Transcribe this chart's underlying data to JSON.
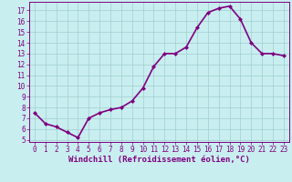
{
  "x": [
    0,
    1,
    2,
    3,
    4,
    5,
    6,
    7,
    8,
    9,
    10,
    11,
    12,
    13,
    14,
    15,
    16,
    17,
    18,
    19,
    20,
    21,
    22,
    23
  ],
  "y": [
    7.5,
    6.5,
    6.2,
    5.7,
    5.2,
    7.0,
    7.5,
    7.8,
    8.0,
    8.6,
    9.8,
    11.8,
    13.0,
    13.0,
    13.6,
    15.4,
    16.8,
    17.2,
    17.4,
    16.2,
    14.0,
    13.0,
    13.0,
    12.8
  ],
  "line_color": "#800080",
  "marker": "D",
  "marker_size": 2.0,
  "bg_color": "#c8eef0",
  "grid_color": "#a0cece",
  "xlabel": "Windchill (Refroidissement éolien,°C)",
  "xlim": [
    -0.5,
    23.5
  ],
  "ylim": [
    4.8,
    17.8
  ],
  "yticks": [
    5,
    6,
    7,
    8,
    9,
    10,
    11,
    12,
    13,
    14,
    15,
    16,
    17
  ],
  "xticks": [
    0,
    1,
    2,
    3,
    4,
    5,
    6,
    7,
    8,
    9,
    10,
    11,
    12,
    13,
    14,
    15,
    16,
    17,
    18,
    19,
    20,
    21,
    22,
    23
  ],
  "tick_color": "#800080",
  "tick_fontsize": 5.5,
  "xlabel_fontsize": 6.5,
  "line_width": 1.2
}
